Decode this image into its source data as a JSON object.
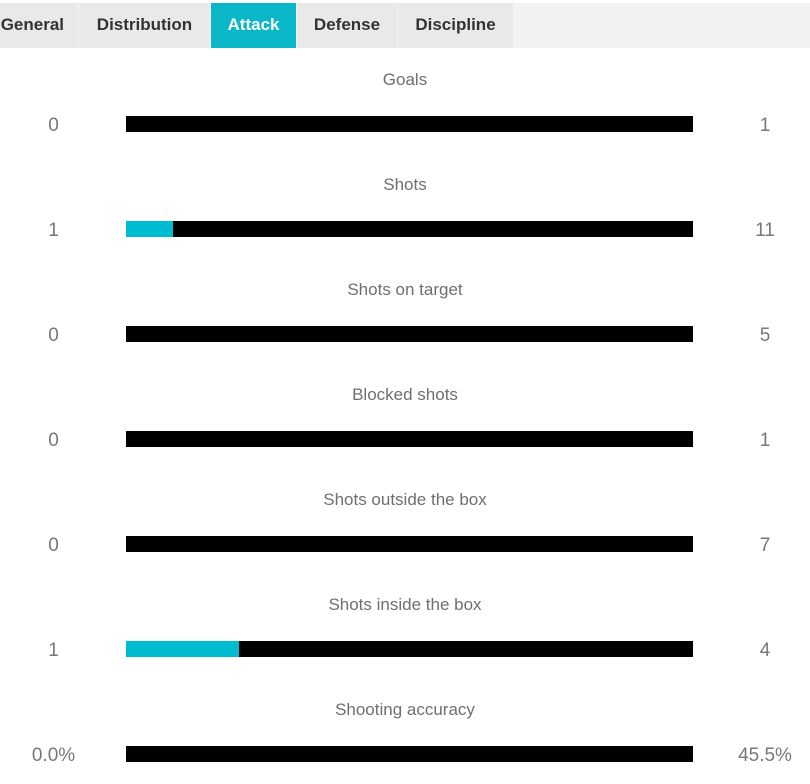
{
  "tabs": [
    {
      "label": "General",
      "active": false
    },
    {
      "label": "Distribution",
      "active": false
    },
    {
      "label": "Attack",
      "active": true
    },
    {
      "label": "Defense",
      "active": false
    },
    {
      "label": "Discipline",
      "active": false
    }
  ],
  "colors": {
    "accent": "#0ab7c9",
    "home_bar": "#00bcd0",
    "away_bar": "#000000"
  },
  "stats": [
    {
      "label": "Goals",
      "home": "0",
      "away": "1",
      "home_share": 0
    },
    {
      "label": "Shots",
      "home": "1",
      "away": "11",
      "home_share": 0.0833
    },
    {
      "label": "Shots on target",
      "home": "0",
      "away": "5",
      "home_share": 0
    },
    {
      "label": "Blocked shots",
      "home": "0",
      "away": "1",
      "home_share": 0
    },
    {
      "label": "Shots outside the box",
      "home": "0",
      "away": "7",
      "home_share": 0
    },
    {
      "label": "Shots inside the box",
      "home": "1",
      "away": "4",
      "home_share": 0.2
    },
    {
      "label": "Shooting accuracy",
      "home": "0.0%",
      "away": "45.5%",
      "home_share": 0
    }
  ]
}
